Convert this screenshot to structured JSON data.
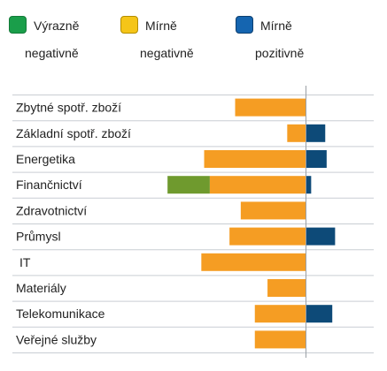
{
  "legend": [
    {
      "line1": "Výrazně",
      "line2": "negativně",
      "color": "#1a9e4a",
      "border": "#137a38"
    },
    {
      "line1": "Mírně",
      "line2": "negativně",
      "color": "#f5c518",
      "border": "#b38d00"
    },
    {
      "line1": "Mírně",
      "line2": "pozitivně",
      "color": "#1565b0",
      "border": "#0d3f70"
    }
  ],
  "bar_colors": {
    "strong_negative": "#6f9a2e",
    "mild_negative": "#f59d23",
    "mild_positive": "#0d4a78"
  },
  "chart_data": {
    "type": "bar",
    "orientation": "horizontal",
    "stacked": true,
    "categories": [
      "Zbytné spotř. zboží",
      "Základní spotř. zboží",
      "Energetika",
      "Finančnictví",
      "Zdravotnictví",
      "Průmysl",
      "IT",
      "Materiály",
      "Telekomunikace",
      "Veřejné služby"
    ],
    "series": [
      {
        "name": "Výrazně negativně",
        "values": [
          0,
          0,
          0,
          -30,
          0,
          0,
          0,
          0,
          0,
          0
        ]
      },
      {
        "name": "Mírně negativně",
        "values": [
          -50,
          -13,
          -72,
          -68,
          -46,
          -54,
          -74,
          -27,
          -36,
          -36
        ]
      },
      {
        "name": "Mírně pozitivně",
        "values": [
          0,
          14,
          15,
          4,
          0,
          21,
          0,
          0,
          19,
          0
        ]
      }
    ],
    "xlim": [
      -100,
      48
    ],
    "grid": true,
    "legend_position": "top"
  }
}
